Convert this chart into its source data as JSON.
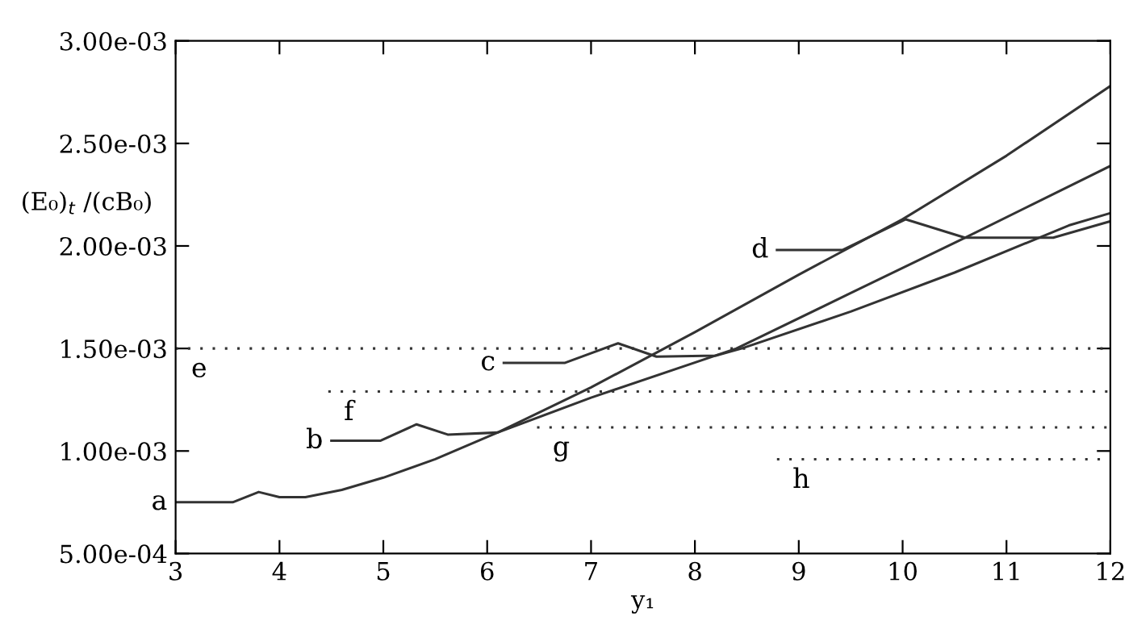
{
  "chart_data": {
    "type": "line",
    "xlabel": "y₁",
    "ylabel": "(E₀)$_{t}$ /(cB₀)",
    "xlim": [
      3,
      12
    ],
    "ylim": [
      0.0005,
      0.003
    ],
    "xticks": [
      3,
      4,
      5,
      6,
      7,
      8,
      9,
      10,
      11,
      12
    ],
    "yticks": [
      {
        "value": 0.0005,
        "label": "5.00e-04"
      },
      {
        "value": 0.001,
        "label": "1.00e-03"
      },
      {
        "value": 0.0015,
        "label": "1.50e-03"
      },
      {
        "value": 0.002,
        "label": "2.00e-03"
      },
      {
        "value": 0.0025,
        "label": "2.50e-03"
      },
      {
        "value": 0.003,
        "label": "3.00e-03"
      }
    ],
    "grid": false,
    "legend": false,
    "series": [
      {
        "name": "a",
        "color": "#333333",
        "x": [
          3,
          3.55,
          3.8,
          4.0,
          4.25,
          4.6,
          5.0,
          5.5,
          6.1,
          7.0,
          8.0,
          9.0,
          10.0,
          11.0,
          12.0
        ],
        "values": [
          0.00075,
          0.00075,
          0.0008,
          0.000775,
          0.000775,
          0.00081,
          0.00087,
          0.00096,
          0.00109,
          0.00131,
          0.00158,
          0.00186,
          0.00213,
          0.00244,
          0.00278
        ]
      },
      {
        "name": "b",
        "color": "#333333",
        "x": [
          4.5,
          4.97,
          5.32,
          5.62,
          6.1,
          7.0,
          8.4,
          9.5,
          10.6,
          12.0
        ],
        "values": [
          0.00105,
          0.00105,
          0.00113,
          0.00108,
          0.00109,
          0.00126,
          0.0015,
          0.00177,
          0.00204,
          0.00239
        ]
      },
      {
        "name": "c",
        "color": "#333333",
        "x": [
          6.16,
          6.75,
          7.26,
          7.63,
          8.2,
          8.45,
          9.5,
          10.5,
          11.6,
          12.0
        ],
        "values": [
          0.00143,
          0.00143,
          0.001525,
          0.00146,
          0.001465,
          0.0015,
          0.00168,
          0.00187,
          0.0021,
          0.00216
        ]
      },
      {
        "name": "d",
        "color": "#333333",
        "x": [
          8.79,
          9.42,
          10.03,
          10.6,
          11.45,
          12.0
        ],
        "values": [
          0.00198,
          0.00198,
          0.00213,
          0.00204,
          0.00204,
          0.00212
        ]
      },
      {
        "name": "e",
        "color": "#333333",
        "line_style": "dotted",
        "x": [
          3,
          12
        ],
        "values": [
          0.0015,
          0.0015
        ]
      },
      {
        "name": "f",
        "color": "#333333",
        "line_style": "dotted",
        "x": [
          4.47,
          12
        ],
        "values": [
          0.00129,
          0.00129
        ]
      },
      {
        "name": "g",
        "color": "#333333",
        "line_style": "dotted",
        "x": [
          6.48,
          12
        ],
        "values": [
          0.001115,
          0.001115
        ]
      },
      {
        "name": "h",
        "color": "#333333",
        "line_style": "dotted",
        "x": [
          8.79,
          12
        ],
        "values": [
          0.00096,
          0.00096
        ]
      }
    ],
    "line_style": "solid",
    "marker": "none"
  }
}
